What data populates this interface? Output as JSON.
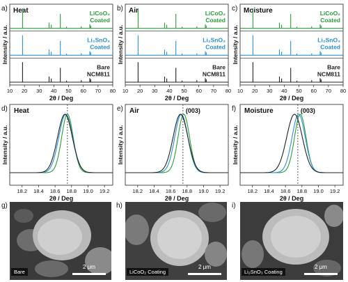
{
  "colors": {
    "licoo2": "#2e9b3e",
    "li2sno3": "#2f8fd0",
    "bare": "#222222",
    "marker": "#7aa0c8"
  },
  "labels_row_top": {
    "panels": [
      {
        "letter": "a)",
        "title": "Heat"
      },
      {
        "letter": "b)",
        "title": "Air"
      },
      {
        "letter": "c)",
        "title": "Moisture"
      }
    ],
    "ylabel": "Intensity / a.u.",
    "xlabel": "2θ / Deg",
    "xticks": [
      "10",
      "20",
      "30",
      "40",
      "50",
      "60",
      "70",
      "80"
    ],
    "series_text": {
      "licoo2": [
        "LiCoO₂",
        "Coated"
      ],
      "li2sno3": [
        "Li₂SnO₃",
        "Coated"
      ],
      "bare": [
        "Bare",
        "NCM811"
      ]
    }
  },
  "labels_row_mid": {
    "panels": [
      {
        "letter": "d)",
        "title": "Heat",
        "peak": ""
      },
      {
        "letter": "e)",
        "title": "Air",
        "peak": "(003)"
      },
      {
        "letter": "f)",
        "title": "Moisture",
        "peak": "(003)"
      }
    ],
    "ylabel": "Intensity / a.u.",
    "xlabel": "2θ / Deg",
    "xticks": [
      "18.2",
      "18.4",
      "18.6",
      "18.8",
      "19.0",
      "19.2"
    ]
  },
  "sem": [
    {
      "letter": "g)",
      "caption": "Bare",
      "scale": "2 μm"
    },
    {
      "letter": "h)",
      "caption": "LiCoO₂ Coating",
      "scale": "2 μm"
    },
    {
      "letter": "i)",
      "caption": "Li₂SnO₃ Coating",
      "scale": "2 μm"
    }
  ],
  "chart_data": [
    {
      "type": "line",
      "title": "Heat",
      "xlabel": "2θ / Deg",
      "ylabel": "Intensity / a.u.",
      "xlim": [
        10,
        80
      ],
      "series": [
        {
          "name": "LiCoO₂ Coated",
          "peaks": [
            [
              18.7,
              1.0
            ],
            [
              36.7,
              0.28
            ],
            [
              38.2,
              0.18
            ],
            [
              44.4,
              0.72
            ],
            [
              48.6,
              0.08
            ],
            [
              58.6,
              0.1
            ],
            [
              64.4,
              0.2
            ],
            [
              65.0,
              0.14
            ]
          ]
        },
        {
          "name": "Li₂SnO₃ Coated",
          "peaks": [
            [
              18.7,
              1.0
            ],
            [
              36.7,
              0.28
            ],
            [
              38.2,
              0.18
            ],
            [
              44.4,
              0.72
            ],
            [
              48.6,
              0.08
            ],
            [
              58.6,
              0.1
            ],
            [
              64.4,
              0.2
            ],
            [
              65.0,
              0.14
            ]
          ]
        },
        {
          "name": "Bare NCM811",
          "peaks": [
            [
              18.7,
              1.0
            ],
            [
              36.7,
              0.28
            ],
            [
              38.2,
              0.18
            ],
            [
              44.4,
              0.72
            ],
            [
              48.6,
              0.08
            ],
            [
              58.6,
              0.1
            ],
            [
              64.4,
              0.2
            ],
            [
              65.0,
              0.14
            ]
          ]
        }
      ]
    },
    {
      "type": "line",
      "title": "Air",
      "xlabel": "2θ / Deg",
      "ylabel": "Intensity / a.u.",
      "xlim": [
        10,
        80
      ],
      "series": [
        {
          "name": "LiCoO₂ Coated",
          "peaks": [
            [
              18.7,
              1.0
            ],
            [
              36.7,
              0.28
            ],
            [
              38.2,
              0.18
            ],
            [
              44.4,
              0.72
            ],
            [
              48.6,
              0.08
            ],
            [
              58.6,
              0.1
            ],
            [
              64.4,
              0.2
            ],
            [
              65.0,
              0.14
            ]
          ]
        },
        {
          "name": "Li₂SnO₃ Coated",
          "peaks": [
            [
              18.7,
              1.0
            ],
            [
              36.7,
              0.28
            ],
            [
              38.2,
              0.18
            ],
            [
              44.4,
              0.72
            ],
            [
              48.6,
              0.08
            ],
            [
              58.6,
              0.1
            ],
            [
              64.4,
              0.2
            ],
            [
              65.0,
              0.14
            ]
          ]
        },
        {
          "name": "Bare NCM811",
          "peaks": [
            [
              18.7,
              1.0
            ],
            [
              36.7,
              0.28
            ],
            [
              38.2,
              0.18
            ],
            [
              44.4,
              0.72
            ],
            [
              48.6,
              0.08
            ],
            [
              58.6,
              0.1
            ],
            [
              64.4,
              0.2
            ],
            [
              65.0,
              0.14
            ]
          ]
        }
      ]
    },
    {
      "type": "line",
      "title": "Moisture",
      "xlabel": "2θ / Deg",
      "ylabel": "Intensity / a.u.",
      "xlim": [
        10,
        80
      ],
      "series": [
        {
          "name": "LiCoO₂ Coated",
          "peaks": [
            [
              18.7,
              1.0
            ],
            [
              36.7,
              0.28
            ],
            [
              38.2,
              0.18
            ],
            [
              44.4,
              0.72
            ],
            [
              48.6,
              0.08
            ],
            [
              58.6,
              0.1
            ],
            [
              64.4,
              0.2
            ],
            [
              65.0,
              0.14
            ]
          ]
        },
        {
          "name": "Li₂SnO₃ Coated",
          "peaks": [
            [
              18.7,
              1.0
            ],
            [
              36.7,
              0.28
            ],
            [
              38.2,
              0.18
            ],
            [
              44.4,
              0.72
            ],
            [
              48.6,
              0.08
            ],
            [
              58.6,
              0.1
            ],
            [
              64.4,
              0.2
            ],
            [
              65.0,
              0.14
            ]
          ]
        },
        {
          "name": "Bare NCM811",
          "peaks": [
            [
              18.7,
              1.0
            ],
            [
              36.7,
              0.28
            ],
            [
              38.2,
              0.18
            ],
            [
              44.4,
              0.72
            ],
            [
              48.6,
              0.08
            ],
            [
              58.6,
              0.1
            ],
            [
              64.4,
              0.2
            ],
            [
              65.0,
              0.14
            ]
          ]
        }
      ]
    },
    {
      "type": "line",
      "title": "Heat",
      "xlabel": "2θ / Deg",
      "ylabel": "Intensity / a.u.",
      "xlim": [
        18.05,
        19.3
      ],
      "marker_x": 18.75,
      "series": [
        {
          "name": "LiCoO₂ Coated",
          "center": 18.75,
          "width": 0.07,
          "color_key": "licoo2"
        },
        {
          "name": "Li₂SnO₃ Coated",
          "center": 18.73,
          "width": 0.085,
          "color_key": "li2sno3"
        },
        {
          "name": "Bare NCM811",
          "center": 18.72,
          "width": 0.09,
          "color_key": "bare"
        }
      ]
    },
    {
      "type": "line",
      "title": "Air",
      "xlabel": "2θ / Deg",
      "ylabel": "Intensity / a.u.",
      "xlim": [
        18.05,
        19.3
      ],
      "marker_x": 18.75,
      "series": [
        {
          "name": "LiCoO₂ Coated",
          "center": 18.76,
          "width": 0.07,
          "color_key": "licoo2"
        },
        {
          "name": "Li₂SnO₃ Coated",
          "center": 18.73,
          "width": 0.08,
          "color_key": "li2sno3"
        },
        {
          "name": "Bare NCM811",
          "center": 18.72,
          "width": 0.09,
          "color_key": "bare"
        }
      ]
    },
    {
      "type": "line",
      "title": "Moisture",
      "xlabel": "2θ / Deg",
      "ylabel": "Intensity / a.u.",
      "xlim": [
        18.05,
        19.3
      ],
      "marker_x": 18.75,
      "series": [
        {
          "name": "LiCoO₂ Coated",
          "center": 18.78,
          "width": 0.07,
          "color_key": "licoo2"
        },
        {
          "name": "Li₂SnO₃ Coated",
          "center": 18.76,
          "width": 0.08,
          "color_key": "li2sno3"
        },
        {
          "name": "Bare NCM811",
          "center": 18.71,
          "width": 0.095,
          "color_key": "bare"
        }
      ]
    }
  ]
}
